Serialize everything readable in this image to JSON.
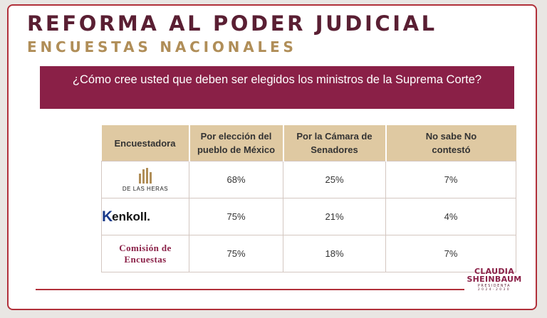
{
  "header": {
    "title": "REFORMA AL PODER JUDICIAL",
    "subtitle": "ENCUESTAS NACIONALES"
  },
  "question": "¿Cómo cree usted que deben ser elegidos los ministros de la Suprema Corte?",
  "table": {
    "headers": [
      "Encuestadora",
      "Por elección del pueblo de México",
      "Por la Cámara de Senadores",
      "No sabe No contestó"
    ],
    "rows": [
      {
        "pollster": "DE LAS HERAS",
        "pollster_icon": "de-las-heras-logo",
        "values": [
          "68%",
          "25%",
          "7%"
        ]
      },
      {
        "pollster": "enkoll.",
        "pollster_mark": "K",
        "pollster_icon": "enkoll-logo",
        "values": [
          "75%",
          "21%",
          "4%"
        ]
      },
      {
        "pollster_line1": "Comisión de",
        "pollster_line2": "Encuestas",
        "pollster_icon": "comision-de-encuestas-logo",
        "values": [
          "75%",
          "18%",
          "7%"
        ]
      }
    ]
  },
  "brand": {
    "name_line1": "CLAUDIA",
    "name_line2": "SHEINBAUM",
    "role": "PRESIDENTA",
    "years": "2024-2030"
  },
  "colors": {
    "maroon": "#8a2047",
    "dark_maroon": "#5a1f33",
    "gold": "#b08e58",
    "header_beige": "#dfc9a2",
    "border_red": "#b1303a"
  }
}
